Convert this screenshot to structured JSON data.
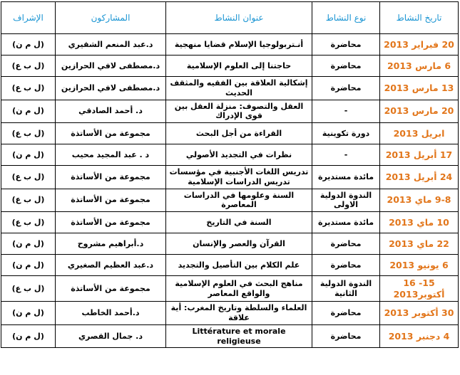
{
  "table": {
    "headers": [
      "تاريخ النشاط",
      "نوع النشاط",
      "عنوان النشاط",
      "المشاركون",
      "الإشراف"
    ],
    "rows": [
      [
        "20 فبراير 2013",
        "محاضرة",
        "أنـتربولوجيا الإسلام قضايا منهجية",
        "د.عبد المنعم الشقيري",
        "(ل م ن)"
      ],
      [
        "6 مارس 2013",
        "محاضرة",
        "حاجتنا إلى العلوم الإسلامية",
        "د.مصطفى لافي الحرازين",
        "(ل ب ع)"
      ],
      [
        "13 مارس 2013",
        "محاضرة",
        "إشكالية العلاقة بين الفقيه والمثقف الحديث",
        "د.مصطفى لافي الحرازين",
        "(ل ب ع)"
      ],
      [
        "20 مارس 2013",
        "-",
        "العقل والتصوف: منزلة العقل بين قوى الإدراك",
        "د. أحمد الصادقي",
        "(ل م ن)"
      ],
      [
        "ابريل 2013",
        "دورة تكوينية",
        "القراءة من أجل البحث",
        "مجموعة من الأساتذة",
        "(ل ب ع)"
      ],
      [
        "17 أبريل 2013",
        "-",
        "نظرات في التجديد الأصولي",
        "د . عبد المجيد محيب",
        "(ل م ن)"
      ],
      [
        "24 أبريل 2013",
        "مائدة مستديرة",
        "تدريس اللغات الأجنبية في مؤسسات تدريس الدراسات الإسلامية",
        "مجموعة من الأساتذة",
        "(ل ب ع)"
      ],
      [
        "9-8 ماي 2013",
        "الندوة الدولية الاولى",
        "السنة وعلومها في الدراسات المعاصرة",
        "مجموعة من الأساتذة",
        "(ل ب ع)"
      ],
      [
        "10 ماي 2013",
        "مائدة مستديرة",
        "السنة في التاريخ",
        "مجموعة من الأساتذة",
        "(ل ب ع)"
      ],
      [
        "22 ماي 2013",
        "محاضرة",
        "القرآن والعصر والإنسان",
        "د.أبراهيم مشروح",
        "(ل م ن)"
      ],
      [
        "6 يونيو 2013",
        "محاضرة",
        "علم الكلام بين التأصيل والتجديد",
        "د.عبد العظيم الصغيري",
        "(ل م ن)"
      ],
      [
        "15- 16 أكتوبر2013",
        "الندوة الدولية الثانية",
        "مناهج البحث في العلوم الإسلامية والواقع المعاصر",
        "مجموعة من الأساتذة",
        "(ل ب ع)"
      ],
      [
        "30 أكتوبر 2013",
        "محاضرة",
        "العلماء والسلطة وتاريخ المغرب: أية علاقة",
        "د.أحمد الخاطب",
        "(ل م ن)"
      ],
      [
        "4 دجنبر 2013",
        "محاضرة",
        "Littérature et morale religieuse",
        "د. جمال القصري",
        "(ل م ن)"
      ]
    ]
  }
}
